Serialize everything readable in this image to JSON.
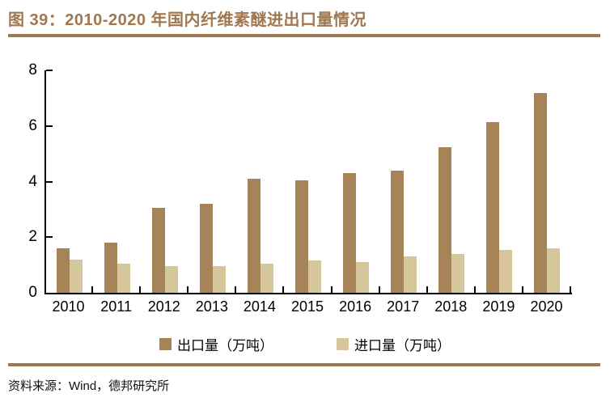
{
  "title": "图 39：2010-2020 年国内纤维素醚进出口量情况",
  "source": "资料来源：Wind，德邦研究所",
  "colors": {
    "accent": "#A0784F",
    "export_bar": "#A68457",
    "import_bar": "#D5C79B",
    "axis": "#000000"
  },
  "chart_data": {
    "type": "bar",
    "title": "2010-2020 年国内纤维素醚进出口量情况",
    "categories": [
      "2010",
      "2011",
      "2012",
      "2013",
      "2014",
      "2015",
      "2016",
      "2017",
      "2018",
      "2019",
      "2020"
    ],
    "series": [
      {
        "name": "出口量（万吨）",
        "color": "#A68457",
        "values": [
          1.6,
          1.8,
          3.05,
          3.2,
          4.1,
          4.05,
          4.3,
          4.4,
          5.25,
          6.15,
          7.2
        ]
      },
      {
        "name": "进口量（万吨）",
        "color": "#D5C79B",
        "values": [
          1.2,
          1.05,
          0.95,
          0.95,
          1.05,
          1.15,
          1.1,
          1.3,
          1.4,
          1.55,
          1.6
        ]
      }
    ],
    "xlabel": "",
    "ylabel": "",
    "ylim": [
      0,
      8
    ],
    "yticks": [
      0,
      2,
      4,
      6,
      8
    ],
    "grid": false,
    "legend_position": "bottom"
  }
}
